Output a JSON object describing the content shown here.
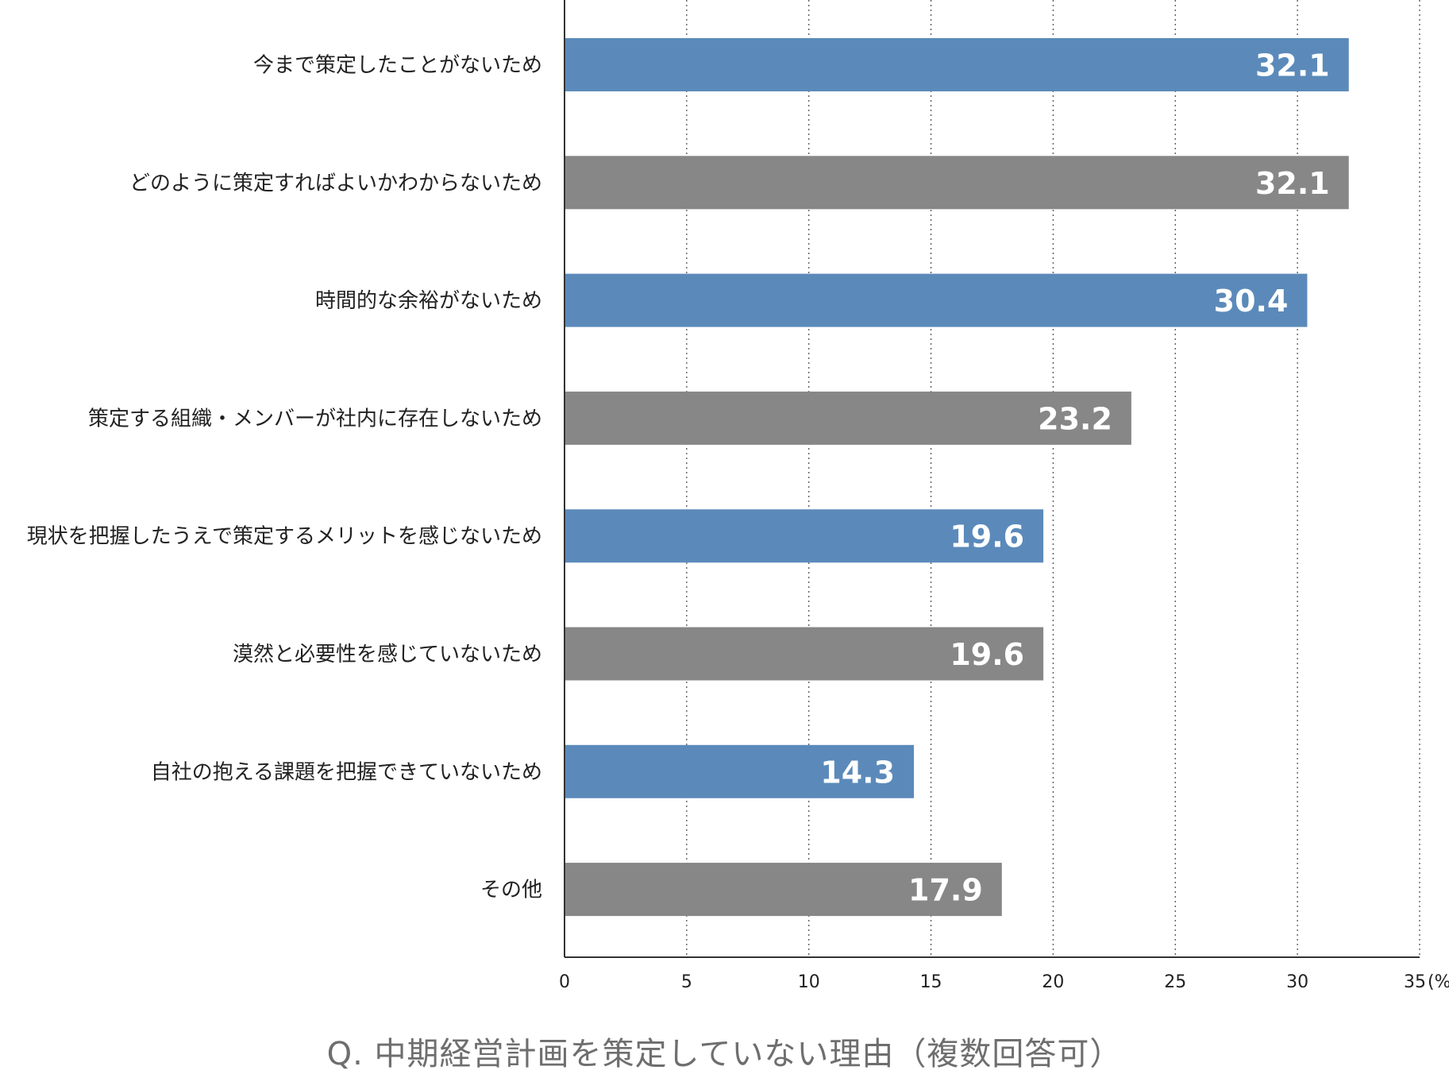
{
  "chart_data": {
    "type": "bar",
    "orientation": "horizontal",
    "categories": [
      "今まで策定したことがないため",
      "どのように策定すればよいかわからないため",
      "時間的な余裕がないため",
      "策定する組織・メンバーが社内に存在しないため",
      "現状を把握したうえで策定するメリットを感じないため",
      "漠然と必要性を感じていないため",
      "自社の抱える課題を把握できていないため",
      "その他"
    ],
    "values": [
      32.1,
      32.1,
      30.4,
      23.2,
      19.6,
      19.6,
      14.3,
      17.9
    ],
    "value_labels": [
      "32.1",
      "32.1",
      "30.4",
      "23.2",
      "19.6",
      "19.6",
      "14.3",
      "17.9"
    ],
    "xlim": [
      0,
      35
    ],
    "x_ticks": [
      0,
      5,
      10,
      15,
      20,
      25,
      30,
      35
    ],
    "x_tick_labels": [
      "0",
      "5",
      "10",
      "15",
      "20",
      "25",
      "30",
      "35"
    ],
    "x_unit": "(%)",
    "grid": "vertical dotted",
    "bar_colors": [
      "#5b8aba",
      "#878787"
    ],
    "title": "Q. 中期経営計画を策定していない理由（複数回答可）"
  }
}
